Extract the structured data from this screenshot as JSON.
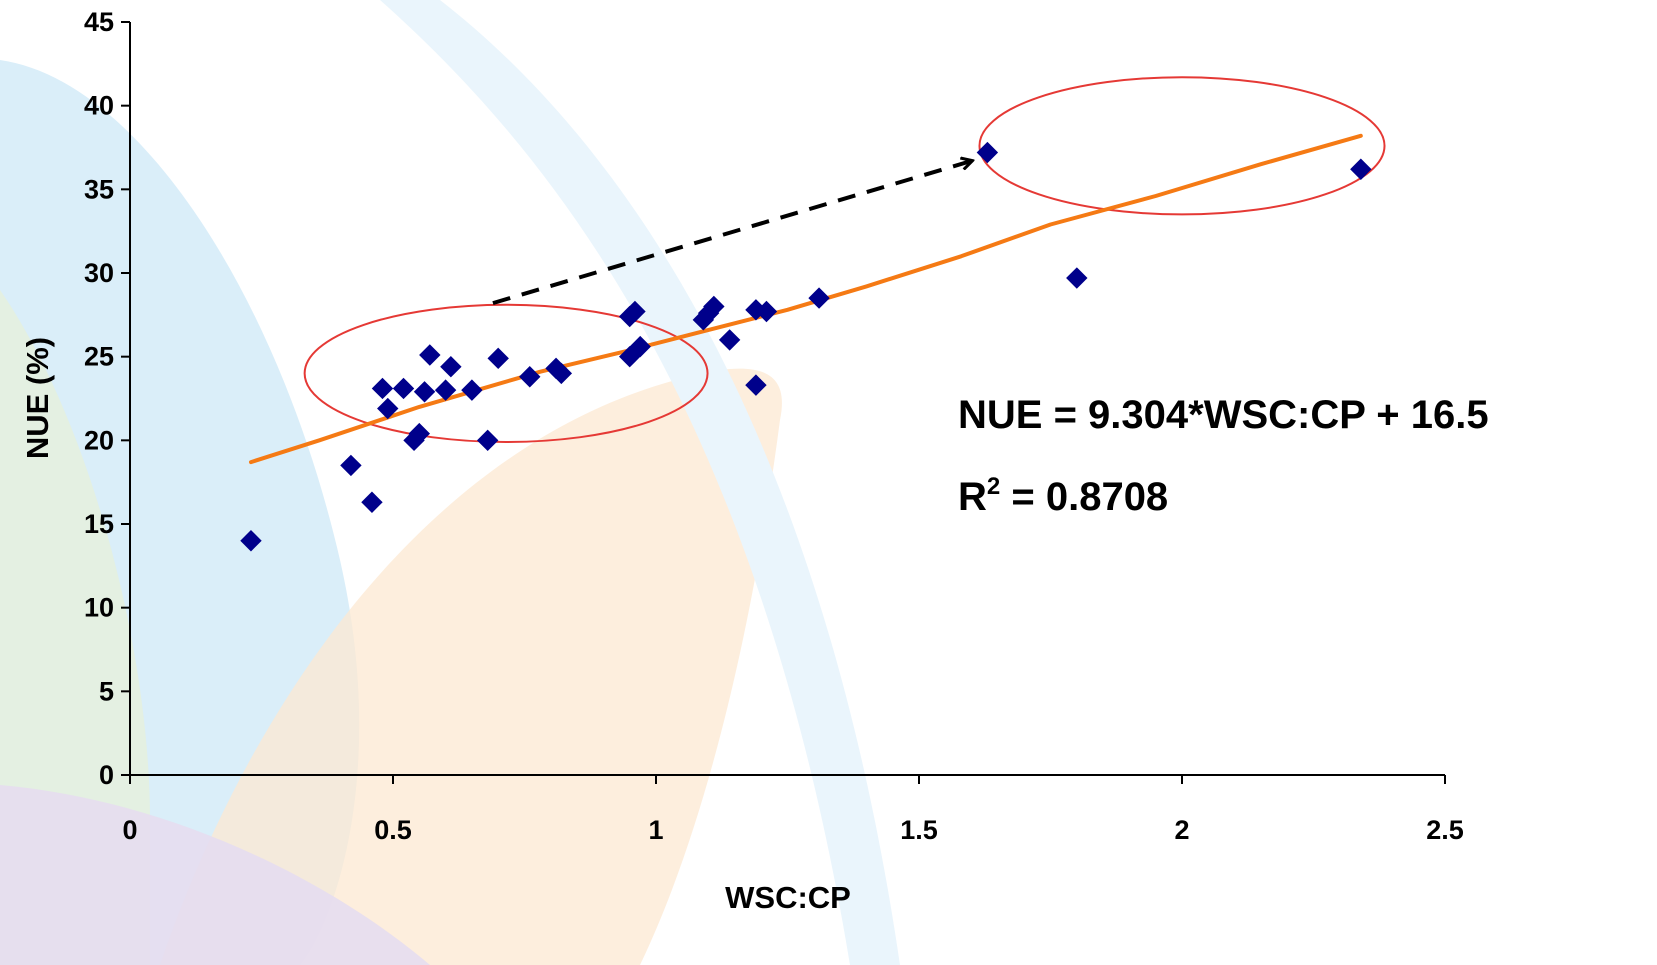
{
  "chart_data": {
    "type": "scatter",
    "xlabel": "WSC:CP",
    "ylabel": "NUE (%)",
    "xlim": [
      0,
      2.5
    ],
    "ylim": [
      0,
      45
    ],
    "x_ticks": [
      "0",
      "0.5",
      "1",
      "1.5",
      "2",
      "2.5"
    ],
    "y_ticks": [
      "0",
      "5",
      "10",
      "15",
      "20",
      "25",
      "30",
      "35",
      "40",
      "45"
    ],
    "grid": false,
    "legend": "none",
    "series": [
      {
        "marker": "diamond",
        "color": "#00008B",
        "points": [
          [
            0.23,
            14.0
          ],
          [
            0.42,
            18.5
          ],
          [
            0.46,
            16.3
          ],
          [
            0.48,
            23.1
          ],
          [
            0.49,
            21.9
          ],
          [
            0.52,
            23.1
          ],
          [
            0.54,
            20.0
          ],
          [
            0.55,
            20.4
          ],
          [
            0.56,
            22.9
          ],
          [
            0.57,
            25.1
          ],
          [
            0.6,
            23.0
          ],
          [
            0.61,
            24.4
          ],
          [
            0.65,
            23.0
          ],
          [
            0.68,
            20.0
          ],
          [
            0.7,
            24.9
          ],
          [
            0.76,
            23.8
          ],
          [
            0.81,
            24.3
          ],
          [
            0.82,
            24.0
          ],
          [
            0.95,
            27.4
          ],
          [
            0.96,
            27.7
          ],
          [
            0.95,
            25.0
          ],
          [
            0.97,
            25.6
          ],
          [
            1.09,
            27.2
          ],
          [
            1.1,
            27.6
          ],
          [
            1.11,
            28.0
          ],
          [
            1.14,
            26.0
          ],
          [
            1.19,
            23.3
          ],
          [
            1.19,
            27.8
          ],
          [
            1.21,
            27.7
          ],
          [
            1.31,
            28.5
          ],
          [
            1.63,
            37.2
          ],
          [
            1.8,
            29.7
          ],
          [
            2.34,
            36.2
          ]
        ]
      }
    ],
    "trendline": {
      "color": "#F57A14",
      "points": [
        [
          0.23,
          18.7
        ],
        [
          0.36,
          20.0
        ],
        [
          0.55,
          22.0
        ],
        [
          0.78,
          24.1
        ],
        [
          0.94,
          25.3
        ],
        [
          1.1,
          26.6
        ],
        [
          1.25,
          27.8
        ],
        [
          1.4,
          29.2
        ],
        [
          1.58,
          31.0
        ],
        [
          1.75,
          32.9
        ],
        [
          1.95,
          34.6
        ],
        [
          2.15,
          36.5
        ],
        [
          2.34,
          38.2
        ]
      ]
    },
    "annotations": {
      "equation": "NUE = 9.304*WSC:CP + 16.5",
      "r2_base": "R",
      "r2_sup": "2",
      "r2_rest": " = 0.8708"
    },
    "ellipse_color": "#E53935",
    "arrow_color": "#000000",
    "background_colors": [
      "#D6ECF8",
      "#E6F0DC",
      "#FCE8D2",
      "#E6DDF0"
    ]
  }
}
